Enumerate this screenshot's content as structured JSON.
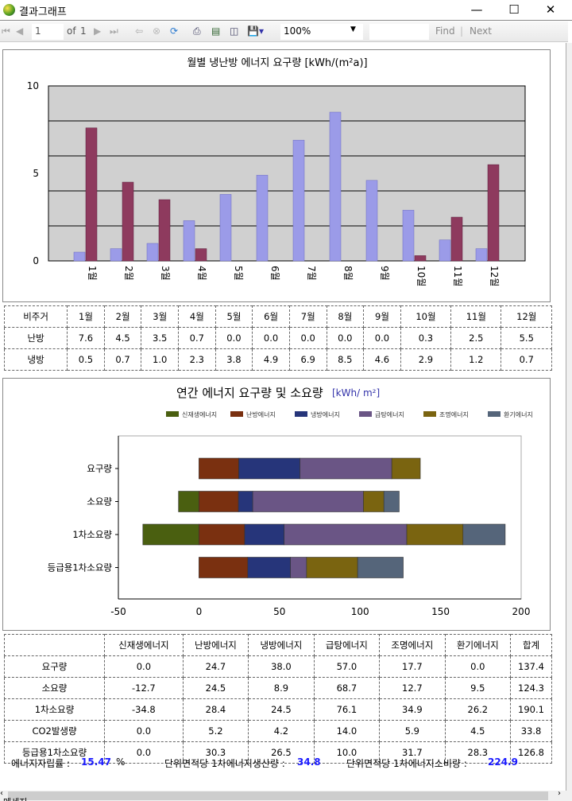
{
  "window": {
    "title": "결과그래프",
    "minimize": "—",
    "maximize": "☐",
    "close": "✕"
  },
  "toolbar": {
    "page": "1",
    "of": "of",
    "total": "1",
    "zoom": "100%",
    "find": "Find",
    "next": "Next",
    "sep": "|"
  },
  "chart_data": [
    {
      "type": "bar",
      "title": "월별 냉난방 에너지 요구량 [kWh/(m²a)]",
      "categories": [
        "1월",
        "2월",
        "3월",
        "4월",
        "5월",
        "6월",
        "7월",
        "8월",
        "9월",
        "10월",
        "11월",
        "12월"
      ],
      "series": [
        {
          "name": "냉방",
          "values": [
            0.5,
            0.7,
            1.0,
            2.3,
            3.8,
            4.9,
            6.9,
            8.5,
            4.6,
            2.9,
            1.2,
            0.7
          ],
          "color": "#9b9be8"
        },
        {
          "name": "난방",
          "values": [
            7.6,
            4.5,
            3.5,
            0.7,
            0.0,
            0.0,
            0.0,
            0.0,
            0.0,
            0.3,
            2.5,
            5.5
          ],
          "color": "#8e3a5e"
        }
      ],
      "ylim": [
        0,
        10
      ],
      "yticks": [
        "0",
        "5",
        "10"
      ],
      "grid": true
    },
    {
      "type": "bar",
      "orientation": "horizontal",
      "stacked": true,
      "title": "연간 에너지 요구량 및 소요량",
      "unit": "[kWh/ m²]",
      "categories": [
        "요구량",
        "소요량",
        "1차소요량",
        "등급용1차소요량"
      ],
      "series": [
        {
          "name": "신재생에너지",
          "values": [
            0.0,
            -12.7,
            -34.8,
            0.0
          ],
          "color": "#4a5f10"
        },
        {
          "name": "난방에너지",
          "values": [
            24.7,
            24.5,
            28.4,
            30.3
          ],
          "color": "#7a3010"
        },
        {
          "name": "냉방에너지",
          "values": [
            38.0,
            8.9,
            24.5,
            26.5
          ],
          "color": "#26357a"
        },
        {
          "name": "급탕에너지",
          "values": [
            57.0,
            68.7,
            76.1,
            10.0
          ],
          "color": "#6a5585"
        },
        {
          "name": "조명에너지",
          "values": [
            17.7,
            12.7,
            34.9,
            31.7
          ],
          "color": "#7a6410"
        },
        {
          "name": "환기에너지",
          "values": [
            0.0,
            9.5,
            26.2,
            28.3
          ],
          "color": "#55657a"
        }
      ],
      "xlim": [
        -50,
        200
      ],
      "xticks": [
        "-50",
        "0",
        "50",
        "100",
        "150",
        "200"
      ],
      "legend": "top"
    }
  ],
  "table1": {
    "header": [
      "비주거",
      "1월",
      "2월",
      "3월",
      "4월",
      "5월",
      "6월",
      "7월",
      "8월",
      "9월",
      "10월",
      "11월",
      "12월"
    ],
    "rows": [
      [
        "난방",
        "7.6",
        "4.5",
        "3.5",
        "0.7",
        "0.0",
        "0.0",
        "0.0",
        "0.0",
        "0.0",
        "0.3",
        "2.5",
        "5.5"
      ],
      [
        "냉방",
        "0.5",
        "0.7",
        "1.0",
        "2.3",
        "3.8",
        "4.9",
        "6.9",
        "8.5",
        "4.6",
        "2.9",
        "1.2",
        "0.7"
      ]
    ]
  },
  "table2": {
    "header": [
      "",
      "신재생에너지",
      "난방에너지",
      "냉방에너지",
      "급탕에너지",
      "조명에너지",
      "환기에너지",
      "합계"
    ],
    "rows": [
      [
        "요구량",
        "0.0",
        "24.7",
        "38.0",
        "57.0",
        "17.7",
        "0.0",
        "137.4"
      ],
      [
        "소요량",
        "-12.7",
        "24.5",
        "8.9",
        "68.7",
        "12.7",
        "9.5",
        "124.3"
      ],
      [
        "1차소요량",
        "-34.8",
        "28.4",
        "24.5",
        "76.1",
        "34.9",
        "26.2",
        "190.1"
      ],
      [
        "CO2발생량",
        "0.0",
        "5.2",
        "4.2",
        "14.0",
        "5.9",
        "4.5",
        "33.8"
      ],
      [
        "등급용1차소요량",
        "0.0",
        "30.3",
        "26.5",
        "10.0",
        "31.7",
        "28.3",
        "126.8"
      ]
    ]
  },
  "footer": {
    "self_label": "에너지자립률 :",
    "self_value": "15.47",
    "self_unit": "%",
    "prod_label": "단위면적당 1차에너지생산량 :",
    "prod_value": "34.8",
    "cons_label": "단위면적당 1차에너지소비량 :",
    "cons_value": "224.9"
  },
  "status": {
    "message": "메세지"
  }
}
